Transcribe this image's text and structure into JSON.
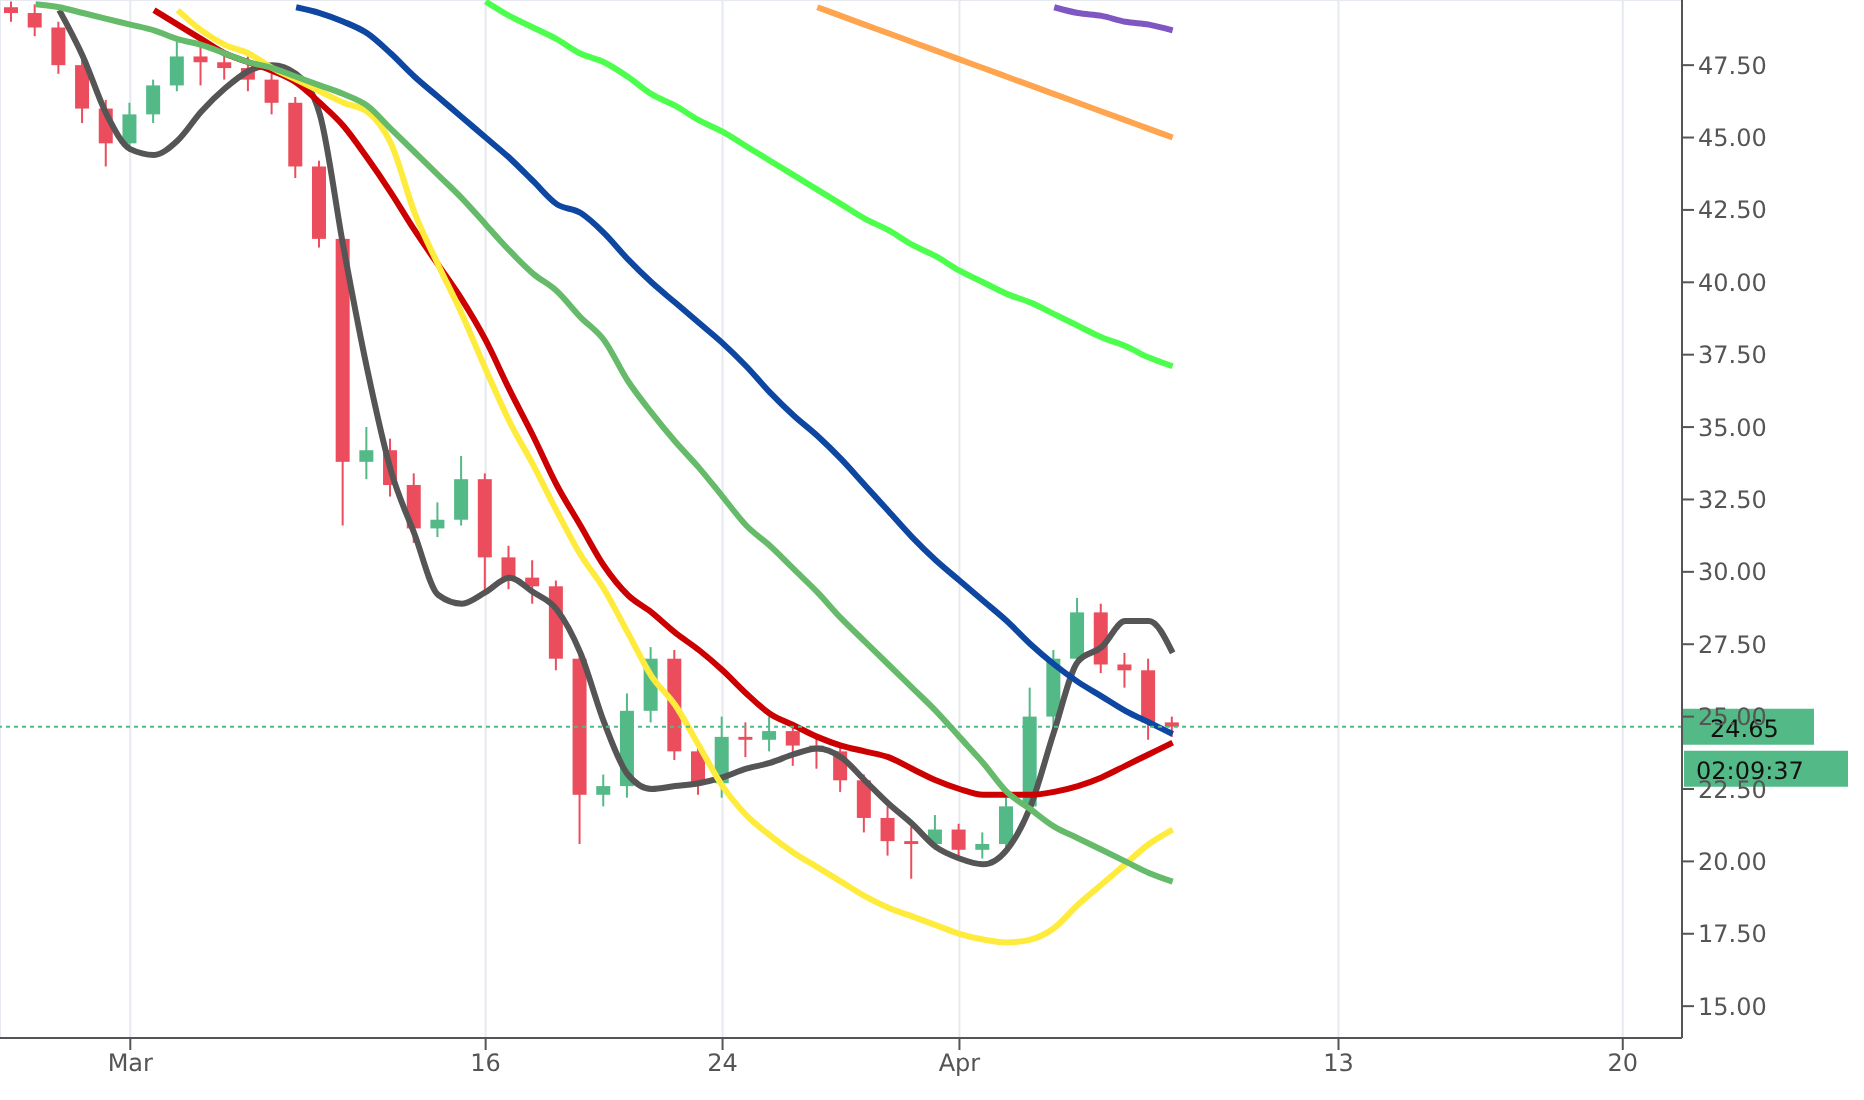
{
  "chart_data": {
    "type": "candlestick",
    "categories": [
      null,
      null,
      null,
      null,
      null,
      "Mar",
      null,
      null,
      null,
      null,
      null,
      null,
      null,
      null,
      null,
      null,
      null,
      null,
      null,
      null,
      "16",
      null,
      null,
      null,
      null,
      null,
      null,
      null,
      null,
      null,
      "24",
      null,
      null,
      null,
      null,
      null,
      null,
      null,
      null,
      null,
      "Apr",
      null,
      null,
      null,
      null,
      null,
      null,
      null,
      null,
      null,
      null,
      null,
      null,
      null,
      null,
      null,
      "13",
      null,
      null,
      null,
      null,
      null,
      null,
      null,
      null,
      null,
      null,
      null,
      "20",
      null,
      null
    ],
    "ohlc": [
      [
        49.5,
        49.7,
        49.0,
        49.3
      ],
      [
        49.3,
        49.6,
        48.5,
        48.8
      ],
      [
        48.8,
        49.0,
        47.2,
        47.5
      ],
      [
        47.5,
        47.8,
        45.5,
        46.0
      ],
      [
        46.0,
        46.3,
        44.0,
        44.8
      ],
      [
        44.8,
        46.2,
        44.5,
        45.8
      ],
      [
        45.8,
        47.0,
        45.5,
        46.8
      ],
      [
        46.8,
        48.3,
        46.6,
        47.8
      ],
      [
        47.8,
        48.5,
        46.8,
        47.6
      ],
      [
        47.6,
        48.0,
        47.0,
        47.4
      ],
      [
        47.4,
        47.8,
        46.6,
        47.0
      ],
      [
        47.0,
        47.2,
        45.8,
        46.2
      ],
      [
        46.2,
        46.4,
        43.6,
        44.0
      ],
      [
        44.0,
        44.2,
        41.2,
        41.5
      ],
      [
        41.5,
        41.6,
        31.6,
        33.8
      ],
      [
        33.8,
        35.0,
        33.2,
        34.2
      ],
      [
        34.2,
        34.6,
        32.6,
        33.0
      ],
      [
        33.0,
        33.4,
        31.0,
        31.5
      ],
      [
        31.5,
        32.4,
        31.2,
        31.8
      ],
      [
        31.8,
        34.0,
        31.6,
        33.2
      ],
      [
        33.2,
        33.4,
        29.2,
        30.5
      ],
      [
        30.5,
        30.9,
        29.4,
        29.8
      ],
      [
        29.8,
        30.4,
        28.9,
        29.5
      ],
      [
        29.5,
        29.7,
        26.6,
        27.0
      ],
      [
        27.0,
        27.2,
        20.6,
        22.3
      ],
      [
        22.3,
        23.0,
        21.9,
        22.6
      ],
      [
        22.6,
        25.8,
        22.2,
        25.2
      ],
      [
        25.2,
        27.4,
        24.8,
        27.0
      ],
      [
        27.0,
        27.3,
        23.5,
        23.8
      ],
      [
        23.8,
        24.0,
        22.3,
        22.7
      ],
      [
        22.7,
        25.0,
        22.2,
        24.3
      ],
      [
        24.3,
        24.8,
        23.6,
        24.2
      ],
      [
        24.2,
        25.0,
        23.8,
        24.5
      ],
      [
        24.5,
        24.8,
        23.3,
        24.0
      ],
      [
        24.0,
        24.3,
        23.2,
        23.8
      ],
      [
        23.8,
        24.0,
        22.4,
        22.8
      ],
      [
        22.8,
        23.0,
        21.0,
        21.5
      ],
      [
        21.5,
        21.9,
        20.2,
        20.7
      ],
      [
        20.7,
        21.2,
        19.4,
        20.6
      ],
      [
        20.6,
        21.6,
        20.4,
        21.1
      ],
      [
        21.1,
        21.3,
        20.1,
        20.4
      ],
      [
        20.4,
        21.0,
        20.1,
        20.6
      ],
      [
        20.6,
        22.2,
        20.4,
        21.9
      ],
      [
        21.9,
        26.0,
        21.7,
        25.0
      ],
      [
        25.0,
        27.3,
        24.6,
        27.0
      ],
      [
        27.0,
        29.1,
        26.8,
        28.6
      ],
      [
        28.6,
        28.9,
        26.5,
        26.8
      ],
      [
        26.8,
        27.2,
        26.0,
        26.6
      ],
      [
        26.6,
        27.0,
        24.2,
        24.8
      ],
      [
        24.8,
        25.0,
        24.3,
        24.65
      ],
      null,
      null,
      null,
      null,
      null,
      null,
      null,
      null,
      null,
      null,
      null,
      null,
      null,
      null,
      null,
      null,
      null,
      null,
      null,
      null,
      null
    ],
    "colors": [
      "#eb4d5c",
      "#eb4d5c",
      "#eb4d5c",
      "#eb4d5c",
      "#eb4d5c",
      "#53b987",
      "#53b987",
      "#53b987",
      "#eb4d5c",
      "#eb4d5c",
      "#eb4d5c",
      "#eb4d5c",
      "#eb4d5c",
      "#eb4d5c",
      "#eb4d5c",
      "#53b987",
      "#eb4d5c",
      "#eb4d5c",
      "#53b987",
      "#53b987",
      "#eb4d5c",
      "#eb4d5c",
      "#eb4d5c",
      "#eb4d5c",
      "#eb4d5c",
      "#53b987",
      "#53b987",
      "#53b987",
      "#eb4d5c",
      "#eb4d5c",
      "#53b987",
      "#eb4d5c",
      "#53b987",
      "#eb4d5c",
      "#eb4d5c",
      "#eb4d5c",
      "#eb4d5c",
      "#eb4d5c",
      "#eb4d5c",
      "#53b987",
      "#eb4d5c",
      "#53b987",
      "#53b987",
      "#53b987",
      "#53b987",
      "#53b987",
      "#eb4d5c",
      "#eb4d5c",
      "#eb4d5c",
      "#eb4d5c",
      null,
      null,
      null,
      null,
      null,
      null,
      null,
      null,
      null,
      null,
      null,
      null,
      null,
      null,
      null,
      null,
      null,
      null,
      null,
      null,
      null
    ],
    "series": [
      {
        "type": "line",
        "color": "#555555",
        "values": [
          null,
          null,
          49.4,
          47.8,
          45.8,
          44.6,
          44.4,
          44.9,
          45.9,
          46.7,
          47.3,
          47.5,
          47.2,
          45.8,
          41.2,
          37.0,
          33.5,
          31.3,
          29.2,
          28.9,
          29.3,
          29.8,
          29.3,
          28.7,
          27.2,
          24.8,
          23.0,
          22.5,
          22.6,
          22.7,
          22.9,
          23.2,
          23.4,
          23.7,
          23.9,
          23.6,
          22.8,
          22.0,
          21.3,
          20.5,
          20.1,
          19.9,
          20.4,
          21.9,
          24.5,
          26.9,
          27.4,
          28.3,
          28.3,
          27.2,
          null,
          null,
          null,
          null,
          null,
          null,
          null,
          null,
          null,
          null,
          null,
          null,
          null,
          null,
          null,
          null,
          null,
          null,
          null,
          null,
          null
        ]
      },
      {
        "type": "line",
        "color": "#cc0000",
        "values": [
          null,
          null,
          null,
          null,
          null,
          null,
          49.4,
          48.9,
          48.4,
          47.9,
          47.6,
          47.3,
          46.9,
          46.2,
          45.4,
          44.3,
          43.1,
          41.8,
          40.6,
          39.4,
          38.0,
          36.3,
          34.7,
          33.0,
          31.6,
          30.2,
          29.2,
          28.6,
          27.9,
          27.3,
          26.6,
          25.8,
          25.1,
          24.7,
          24.3,
          24.0,
          23.8,
          23.6,
          23.2,
          22.8,
          22.5,
          22.3,
          22.3,
          22.3,
          22.4,
          22.6,
          22.9,
          23.3,
          23.7,
          24.1,
          null,
          null,
          null,
          null,
          null,
          null,
          null,
          null,
          null,
          null,
          null,
          null,
          null,
          null,
          null,
          null,
          null,
          null,
          null,
          null,
          null
        ]
      },
      {
        "type": "line",
        "color": "#ffeb3b",
        "values": [
          null,
          null,
          null,
          null,
          null,
          null,
          null,
          49.4,
          48.7,
          48.2,
          47.9,
          47.4,
          47.0,
          46.6,
          46.2,
          45.9,
          44.8,
          42.4,
          40.6,
          38.9,
          37.0,
          35.2,
          33.7,
          32.1,
          30.6,
          29.4,
          27.9,
          26.4,
          25.4,
          24.0,
          22.6,
          21.6,
          20.9,
          20.3,
          19.8,
          19.3,
          18.8,
          18.4,
          18.1,
          17.8,
          17.5,
          17.3,
          17.2,
          17.3,
          17.7,
          18.5,
          19.2,
          19.9,
          20.6,
          21.1,
          null,
          null,
          null,
          null,
          null,
          null,
          null,
          null,
          null,
          null,
          null,
          null,
          null,
          null,
          null,
          null,
          null,
          null,
          null,
          null,
          null
        ]
      },
      {
        "type": "line",
        "color": "#66bb6a",
        "values": [
          null,
          49.6,
          49.5,
          49.3,
          49.1,
          48.9,
          48.7,
          48.4,
          48.2,
          47.9,
          47.6,
          47.4,
          47.1,
          46.8,
          46.5,
          46.1,
          45.3,
          44.5,
          43.7,
          42.9,
          42.0,
          41.1,
          40.3,
          39.7,
          38.8,
          38.0,
          36.6,
          35.5,
          34.5,
          33.6,
          32.6,
          31.6,
          30.9,
          30.1,
          29.3,
          28.4,
          27.6,
          26.8,
          26.0,
          25.2,
          24.3,
          23.4,
          22.4,
          21.8,
          21.2,
          20.8,
          20.4,
          20.0,
          19.6,
          19.3,
          null,
          null,
          null,
          null,
          null,
          null,
          null,
          null,
          null,
          null,
          null,
          null,
          null,
          null,
          null,
          null,
          null,
          null,
          null,
          null,
          null
        ]
      },
      {
        "type": "line",
        "color": "#0d47a1",
        "values": [
          null,
          null,
          null,
          null,
          null,
          null,
          null,
          null,
          null,
          null,
          null,
          null,
          49.5,
          49.3,
          49.0,
          48.6,
          47.9,
          47.1,
          46.4,
          45.7,
          45.0,
          44.3,
          43.5,
          42.7,
          42.4,
          41.7,
          40.8,
          40.0,
          39.3,
          38.6,
          37.9,
          37.1,
          36.2,
          35.4,
          34.7,
          33.9,
          33.0,
          32.1,
          31.2,
          30.4,
          29.7,
          29.0,
          28.3,
          27.5,
          26.8,
          26.2,
          25.7,
          25.2,
          24.8,
          24.4,
          null,
          null,
          null,
          null,
          null,
          null,
          null,
          null,
          null,
          null,
          null,
          null,
          null,
          null,
          null,
          null,
          null,
          null,
          null,
          null,
          null
        ]
      },
      {
        "type": "line",
        "color": "#4cff4c",
        "values": [
          null,
          null,
          null,
          null,
          null,
          null,
          null,
          null,
          null,
          null,
          null,
          null,
          null,
          null,
          null,
          null,
          null,
          null,
          null,
          null,
          49.7,
          49.2,
          48.8,
          48.4,
          47.9,
          47.6,
          47.1,
          46.5,
          46.1,
          45.6,
          45.2,
          44.7,
          44.2,
          43.7,
          43.2,
          42.7,
          42.2,
          41.8,
          41.3,
          40.9,
          40.4,
          40.0,
          39.6,
          39.3,
          38.9,
          38.5,
          38.1,
          37.8,
          37.4,
          37.1,
          null,
          null,
          null,
          null,
          null,
          null,
          null,
          null,
          null,
          null,
          null,
          null,
          null,
          null,
          null,
          null,
          null,
          null,
          null,
          null,
          null
        ]
      },
      {
        "type": "line",
        "color": "#ffa54f",
        "values": [
          null,
          null,
          null,
          null,
          null,
          null,
          null,
          null,
          null,
          null,
          null,
          null,
          null,
          null,
          null,
          null,
          null,
          null,
          null,
          null,
          null,
          null,
          null,
          null,
          null,
          null,
          null,
          null,
          null,
          null,
          null,
          null,
          null,
          null,
          49.5,
          49.2,
          48.9,
          48.6,
          48.3,
          48.0,
          47.7,
          47.4,
          47.1,
          46.8,
          46.5,
          46.2,
          45.9,
          45.6,
          45.3,
          45.0,
          null,
          null,
          null,
          null,
          null,
          null,
          null,
          null,
          null,
          null,
          null,
          null,
          null,
          null,
          null,
          null,
          null,
          null,
          null,
          null,
          null
        ]
      },
      {
        "type": "line",
        "color": "#7e57c2",
        "values": [
          null,
          null,
          null,
          null,
          null,
          null,
          null,
          null,
          null,
          null,
          null,
          null,
          null,
          null,
          null,
          null,
          null,
          null,
          null,
          null,
          null,
          null,
          null,
          null,
          null,
          null,
          null,
          null,
          null,
          null,
          null,
          null,
          null,
          null,
          null,
          null,
          null,
          null,
          null,
          null,
          null,
          null,
          null,
          null,
          49.5,
          49.3,
          49.2,
          49.0,
          48.9,
          48.7,
          null,
          null,
          null,
          null,
          null,
          null,
          null,
          null,
          null,
          null,
          null,
          null,
          null,
          null,
          null,
          null,
          null,
          null,
          null,
          null,
          null
        ]
      }
    ],
    "ylim": [
      13.9,
      49.75
    ],
    "yticks": [
      {
        "value": 15,
        "label": "15.00"
      },
      {
        "value": 17.5,
        "label": "17.50"
      },
      {
        "value": 20,
        "label": "20.00"
      },
      {
        "value": 22.5,
        "label": "22.50"
      },
      {
        "value": 25,
        "label": "25.00"
      },
      {
        "value": 27.5,
        "label": "27.50"
      },
      {
        "value": 30,
        "label": "30.00"
      },
      {
        "value": 32.5,
        "label": "32.50"
      },
      {
        "value": 35,
        "label": "35.00"
      },
      {
        "value": 37.5,
        "label": "37.50"
      },
      {
        "value": 40,
        "label": "40.00"
      },
      {
        "value": 42.5,
        "label": "42.50"
      },
      {
        "value": 45,
        "label": "45.00"
      },
      {
        "value": 47.5,
        "label": "47.50"
      }
    ],
    "grid": true,
    "legend": false,
    "marker": "none",
    "line_style": "solid",
    "ref_lines": [
      {
        "axis": "y",
        "value": 24.65,
        "label": "24.65",
        "color": "#53b987",
        "line_style": "dotted"
      }
    ],
    "annotations": [
      "02:09:37"
    ]
  }
}
